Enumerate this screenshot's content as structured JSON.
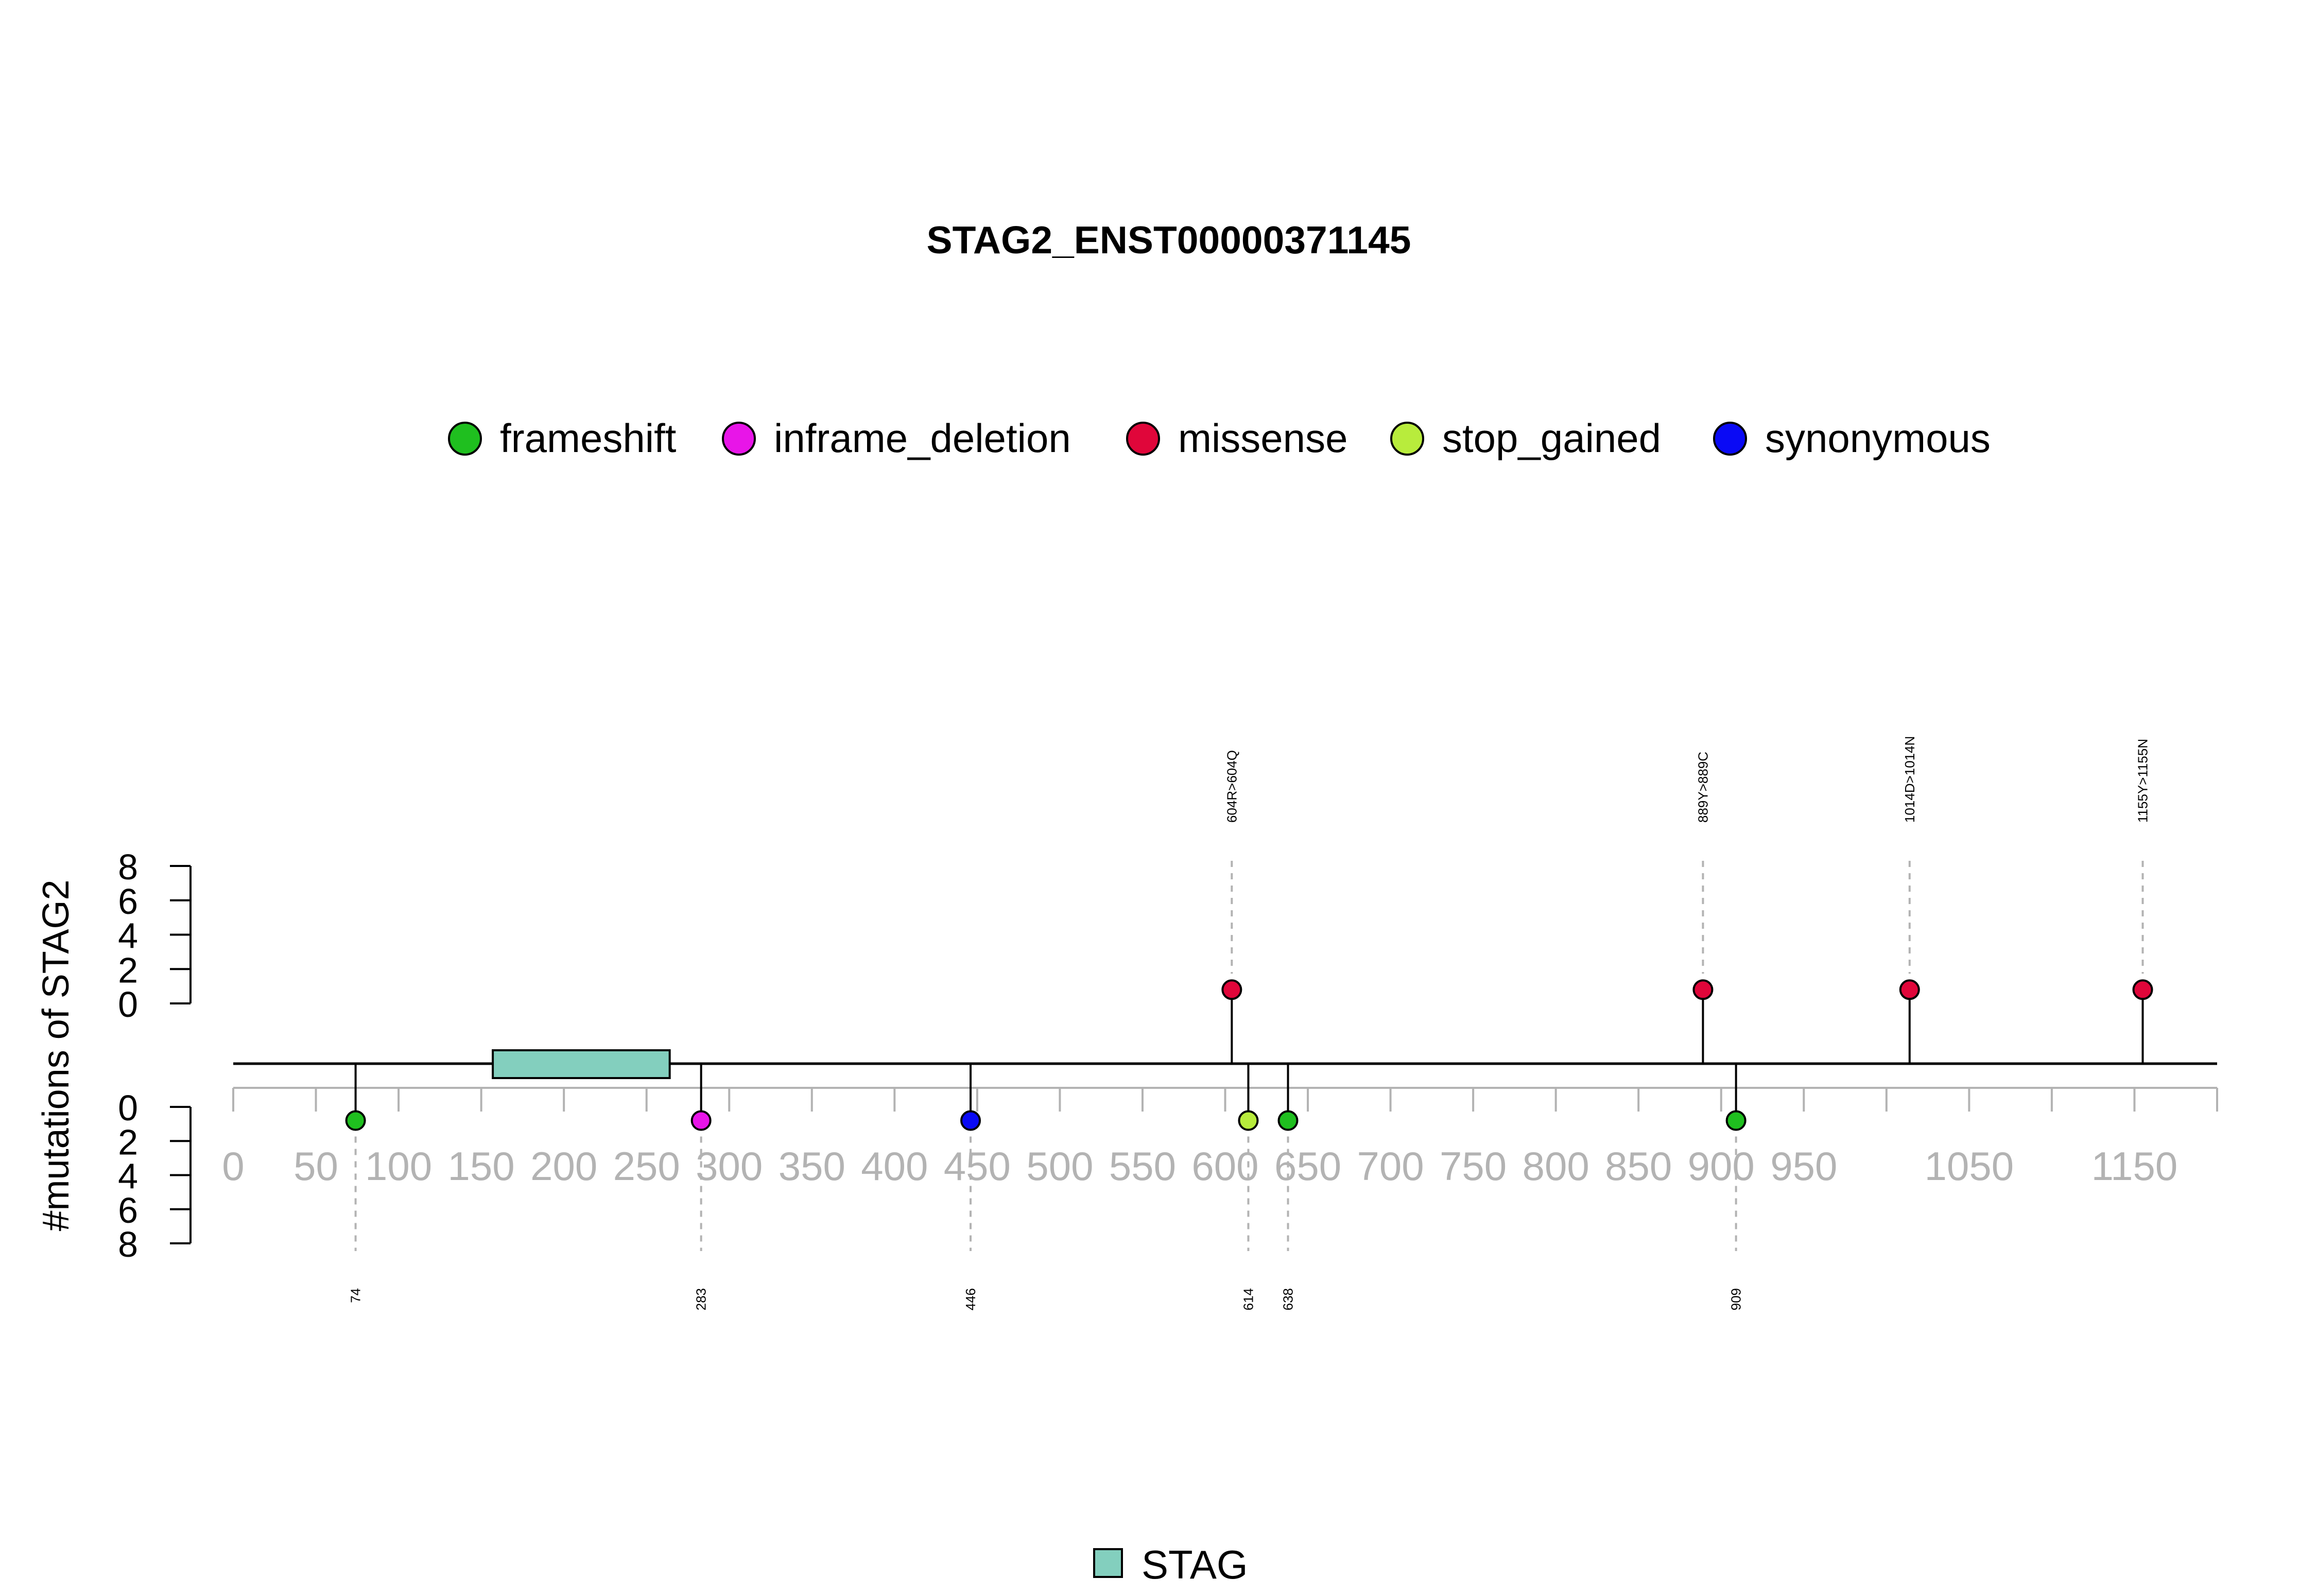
{
  "chart_data": {
    "type": "lollipop",
    "title": "STAG2_ENST00000371145",
    "ylabel": "#mutations of STAG2",
    "protein_length": 1200,
    "xlim": [
      0,
      1200
    ],
    "x_ticks": [
      0,
      50,
      100,
      150,
      200,
      250,
      300,
      350,
      400,
      450,
      500,
      550,
      600,
      650,
      700,
      750,
      800,
      850,
      900,
      950,
      1000,
      1050,
      1100,
      1150,
      1200
    ],
    "x_tick_labels": [
      "0",
      "50",
      "100",
      "150",
      "200",
      "250",
      "300",
      "350",
      "400",
      "450",
      "500",
      "550",
      "600",
      "650",
      "700",
      "750",
      "800",
      "850",
      "900",
      "950",
      "1050",
      "1150"
    ],
    "x_label_positions": [
      0,
      50,
      100,
      150,
      200,
      250,
      300,
      350,
      400,
      450,
      500,
      550,
      600,
      650,
      700,
      750,
      800,
      850,
      900,
      950,
      1050,
      1150
    ],
    "y_ticks": [
      0,
      2,
      4,
      6,
      8
    ],
    "y_tick_labels": [
      "0",
      "2",
      "4",
      "6",
      "8"
    ],
    "ylim": [
      0,
      8
    ],
    "mutation_types": [
      {
        "name": "frameshift",
        "color": "#1fbf1f"
      },
      {
        "name": "inframe_deletion",
        "color": "#e815e8"
      },
      {
        "name": "missense",
        "color": "#e0063a"
      },
      {
        "name": "stop_gained",
        "color": "#b8ec3c"
      },
      {
        "name": "synonymous",
        "color": "#0a0af5"
      }
    ],
    "domains": [
      {
        "name": "STAG",
        "start": 157,
        "end": 264,
        "color": "#83cfbe"
      }
    ],
    "mutations_above": [
      {
        "position": 604,
        "count": 1,
        "type": "missense",
        "label": "604R>604Q"
      },
      {
        "position": 889,
        "count": 1,
        "type": "missense",
        "label": "889Y>889C"
      },
      {
        "position": 1014,
        "count": 1,
        "type": "missense",
        "label": "1014D>1014N"
      },
      {
        "position": 1155,
        "count": 1,
        "type": "missense",
        "label": "1155Y>1155N"
      }
    ],
    "mutations_below": [
      {
        "position": 74,
        "count": 1,
        "type": "frameshift",
        "label": "74"
      },
      {
        "position": 283,
        "count": 1,
        "type": "inframe_deletion",
        "label": "283"
      },
      {
        "position": 446,
        "count": 1,
        "type": "synonymous",
        "label": "446"
      },
      {
        "position": 614,
        "count": 1,
        "type": "stop_gained",
        "label": "614"
      },
      {
        "position": 638,
        "count": 1,
        "type": "frameshift",
        "label": "638"
      },
      {
        "position": 909,
        "count": 1,
        "type": "frameshift",
        "label": "909"
      }
    ]
  }
}
